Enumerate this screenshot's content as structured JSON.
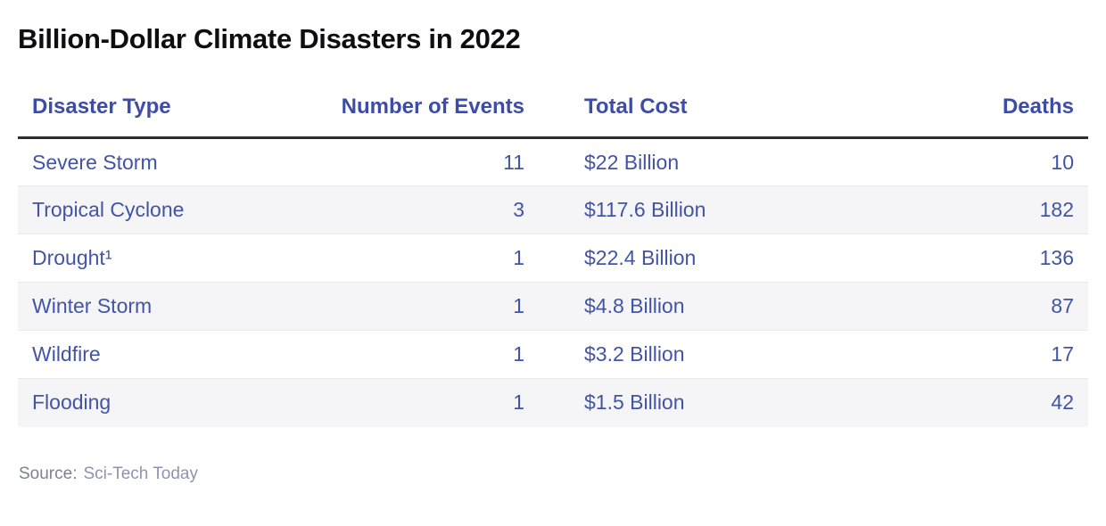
{
  "title": "Billion-Dollar Climate Disasters in 2022",
  "source": {
    "label": "Source:",
    "name": "Sci-Tech Today"
  },
  "colors": {
    "title_text": "#0d0d12",
    "header_text": "#3d4da6",
    "cell_text": "#4254a5",
    "stripe_bg": "#f5f5f7",
    "header_rule": "#2c2c31",
    "row_border": "#eaeaec",
    "source_label": "#7e8290",
    "source_name": "#8e93b2",
    "page_bg": "#ffffff"
  },
  "table": {
    "columns": [
      {
        "label": "Disaster Type",
        "align": "left"
      },
      {
        "label": "Number of Events",
        "align": "right"
      },
      {
        "label": "Total Cost",
        "align": "left"
      },
      {
        "label": "Deaths",
        "align": "right"
      }
    ],
    "rows": [
      [
        "Severe Storm",
        "11",
        "$22 Billion",
        "10"
      ],
      [
        "Tropical Cyclone",
        "3",
        "$117.6 Billion",
        "182"
      ],
      [
        "Drought¹",
        "1",
        "$22.4 Billion",
        "136"
      ],
      [
        "Winter Storm",
        "1",
        "$4.8 Billion",
        "87"
      ],
      [
        "Wildfire",
        "1",
        "$3.2 Billion",
        "17"
      ],
      [
        "Flooding",
        "1",
        "$1.5 Billion",
        "42"
      ]
    ]
  },
  "chart_data": {
    "type": "table",
    "title": "Billion-Dollar Climate Disasters in 2022",
    "columns": [
      "Disaster Type",
      "Number of Events",
      "Total Cost",
      "Deaths"
    ],
    "rows": [
      {
        "disaster_type": "Severe Storm",
        "number_of_events": 11,
        "total_cost_billion_usd": 22,
        "deaths": 10
      },
      {
        "disaster_type": "Tropical Cyclone",
        "number_of_events": 3,
        "total_cost_billion_usd": 117.6,
        "deaths": 182
      },
      {
        "disaster_type": "Drought",
        "number_of_events": 1,
        "total_cost_billion_usd": 22.4,
        "deaths": 136
      },
      {
        "disaster_type": "Winter Storm",
        "number_of_events": 1,
        "total_cost_billion_usd": 4.8,
        "deaths": 87
      },
      {
        "disaster_type": "Wildfire",
        "number_of_events": 1,
        "total_cost_billion_usd": 3.2,
        "deaths": 17
      },
      {
        "disaster_type": "Flooding",
        "number_of_events": 1,
        "total_cost_billion_usd": 1.5,
        "deaths": 42
      }
    ],
    "source": "Sci-Tech Today"
  }
}
